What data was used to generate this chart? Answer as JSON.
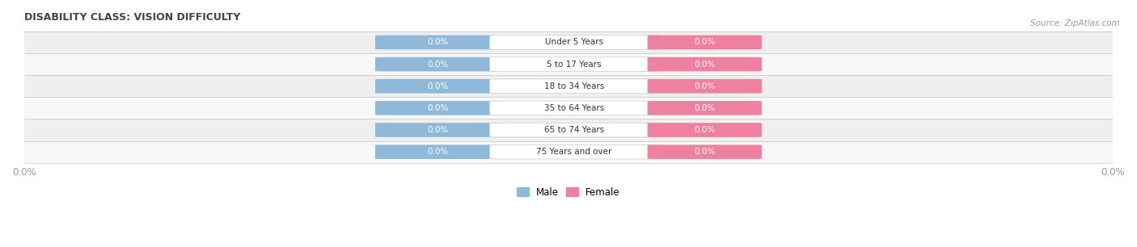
{
  "title": "DISABILITY CLASS: VISION DIFFICULTY",
  "source_text": "Source: ZipAtlas.com",
  "categories": [
    "Under 5 Years",
    "5 to 17 Years",
    "18 to 34 Years",
    "35 to 64 Years",
    "65 to 74 Years",
    "75 Years and over"
  ],
  "male_values": [
    0.0,
    0.0,
    0.0,
    0.0,
    0.0,
    0.0
  ],
  "female_values": [
    0.0,
    0.0,
    0.0,
    0.0,
    0.0,
    0.0
  ],
  "male_color": "#90b8d8",
  "female_color": "#f080a0",
  "row_bg_odd": "#efefef",
  "row_bg_even": "#f8f8f8",
  "title_color": "#444444",
  "axis_label_color": "#999999",
  "category_label_color": "#333333",
  "value_text_color": "#aaaacc",
  "background_color": "#ffffff",
  "legend_male": "Male",
  "legend_female": "Female",
  "x_min": -1.0,
  "x_max": 1.0,
  "bar_height": 0.62
}
